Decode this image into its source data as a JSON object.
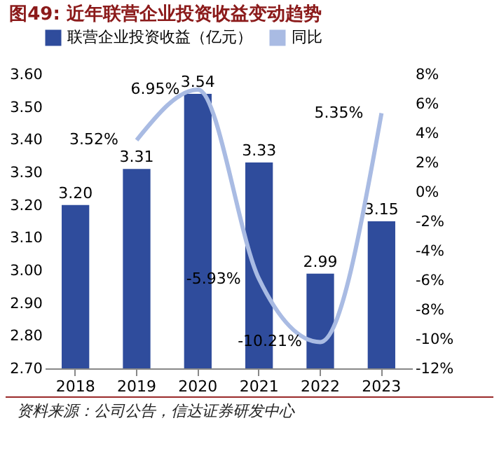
{
  "chart_data": {
    "type": "bar",
    "title": "图49: 近年联营企业投资收益变动趋势",
    "categories": [
      "2018",
      "2019",
      "2020",
      "2021",
      "2022",
      "2023"
    ],
    "series": [
      {
        "name": "联营企业投资收益（亿元）",
        "color": "#2f4c9c",
        "values": [
          3.2,
          3.31,
          3.54,
          3.33,
          2.99,
          3.15
        ],
        "value_labels": [
          "3.20",
          "3.31",
          "3.54",
          "3.33",
          "2.99",
          "3.15"
        ]
      },
      {
        "name": "同比",
        "type": "line",
        "axis": "y2",
        "color": "#a9bbe3",
        "values": [
          null,
          3.52,
          6.95,
          -5.93,
          -10.21,
          5.35
        ],
        "value_labels": [
          null,
          "3.52%",
          "6.95%",
          "-5.93%",
          "-10.21%",
          "5.35%"
        ]
      }
    ],
    "ylim": [
      2.7,
      3.6
    ],
    "yticks": [
      {
        "value": 2.7,
        "label": "2.70"
      },
      {
        "value": 2.8,
        "label": "2.80"
      },
      {
        "value": 2.9,
        "label": "2.90"
      },
      {
        "value": 3.0,
        "label": "3.00"
      },
      {
        "value": 3.1,
        "label": "3.10"
      },
      {
        "value": 3.2,
        "label": "3.20"
      },
      {
        "value": 3.3,
        "label": "3.30"
      },
      {
        "value": 3.4,
        "label": "3.40"
      },
      {
        "value": 3.5,
        "label": "3.50"
      },
      {
        "value": 3.6,
        "label": "3.60"
      }
    ],
    "y2lim": [
      -12,
      8
    ],
    "y2ticks": [
      {
        "value": -12,
        "label": "-12%"
      },
      {
        "value": -10,
        "label": "-10%"
      },
      {
        "value": -8,
        "label": "-8%"
      },
      {
        "value": -6,
        "label": "-6%"
      },
      {
        "value": -4,
        "label": "-4%"
      },
      {
        "value": -2,
        "label": "-2%"
      },
      {
        "value": 0,
        "label": "0%"
      },
      {
        "value": 2,
        "label": "2%"
      },
      {
        "value": 4,
        "label": "4%"
      },
      {
        "value": 6,
        "label": "6%"
      },
      {
        "value": 8,
        "label": "8%"
      }
    ],
    "data_labels": true,
    "legend": "top",
    "grid": false,
    "annotations": [
      "资料来源：公司公告，信达证券研发中心"
    ]
  }
}
